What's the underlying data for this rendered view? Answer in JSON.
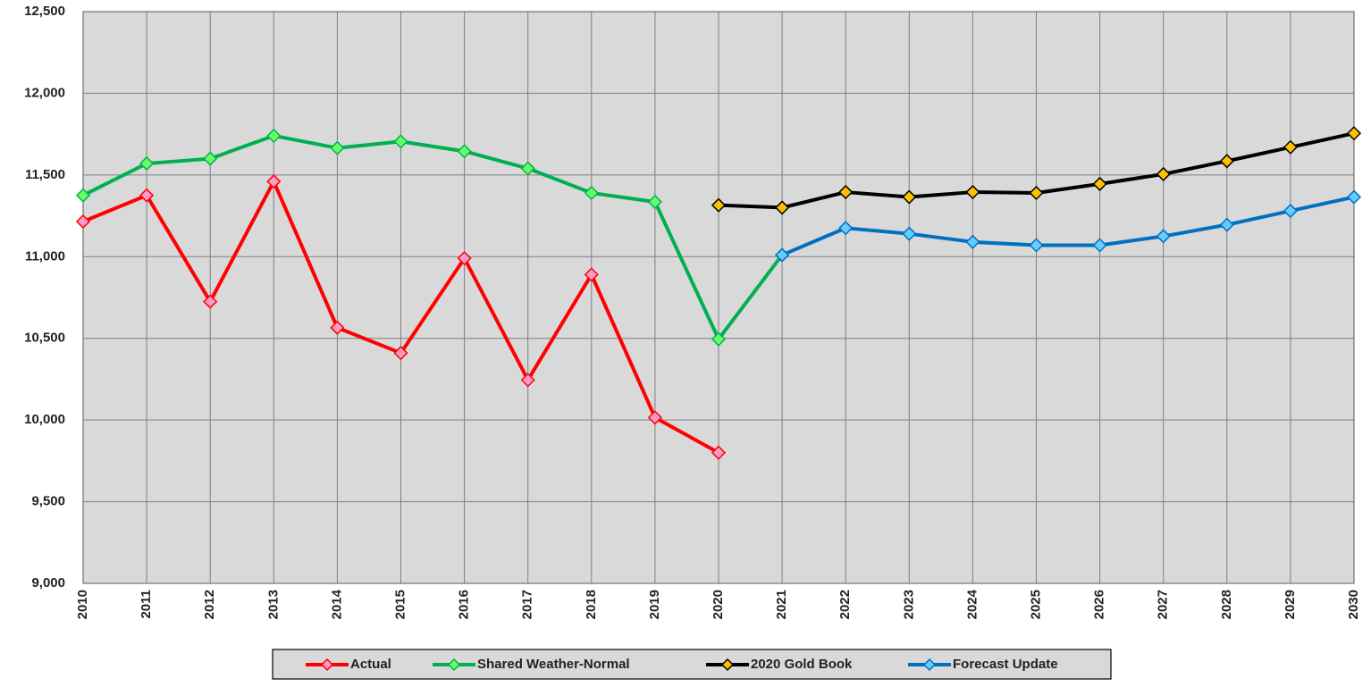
{
  "chart_data": {
    "type": "line",
    "categories": [
      "2010",
      "2011",
      "2012",
      "2013",
      "2014",
      "2015",
      "2016",
      "2017",
      "2018",
      "2019",
      "2020",
      "2021",
      "2022",
      "2023",
      "2024",
      "2025",
      "2026",
      "2027",
      "2028",
      "2029",
      "2030"
    ],
    "series": [
      {
        "name": "Actual",
        "color": "#ff0000",
        "marker_color": "#ff99cc",
        "values": [
          11215,
          11375,
          10725,
          11460,
          10565,
          10410,
          10990,
          10245,
          10890,
          10015,
          9800,
          null,
          null,
          null,
          null,
          null,
          null,
          null,
          null,
          null,
          null
        ]
      },
      {
        "name": "Shared Weather-Normal",
        "color": "#00b050",
        "marker_color": "#66ff66",
        "values": [
          11375,
          11570,
          11600,
          11740,
          11665,
          11705,
          11645,
          11540,
          11390,
          11335,
          10495,
          11010,
          null,
          null,
          null,
          null,
          null,
          null,
          null,
          null,
          null
        ]
      },
      {
        "name": "2020 Gold Book",
        "color": "#000000",
        "marker_color": "#ffc000",
        "values": [
          null,
          null,
          null,
          null,
          null,
          null,
          null,
          null,
          null,
          null,
          11315,
          11300,
          11395,
          11365,
          11395,
          11390,
          11445,
          11505,
          11585,
          11670,
          11755
        ]
      },
      {
        "name": "Forecast Update",
        "color": "#0070c0",
        "marker_color": "#66ccff",
        "values": [
          null,
          null,
          null,
          null,
          null,
          null,
          null,
          null,
          null,
          null,
          null,
          11010,
          11175,
          11140,
          11090,
          11070,
          11070,
          11125,
          11195,
          11280,
          11365
        ]
      }
    ],
    "ylim": [
      9000,
      12500
    ],
    "yticks": [
      {
        "value": 9000,
        "label": "9,000"
      },
      {
        "value": 9500,
        "label": "9,500"
      },
      {
        "value": 10000,
        "label": "10,000"
      },
      {
        "value": 10500,
        "label": "10,500"
      },
      {
        "value": 11000,
        "label": "11,000"
      },
      {
        "value": 11500,
        "label": "11,500"
      },
      {
        "value": 12000,
        "label": "12,000"
      },
      {
        "value": 12500,
        "label": "12,500"
      }
    ],
    "grid": true,
    "background": "#d9d9d9",
    "legend": "bottom"
  }
}
